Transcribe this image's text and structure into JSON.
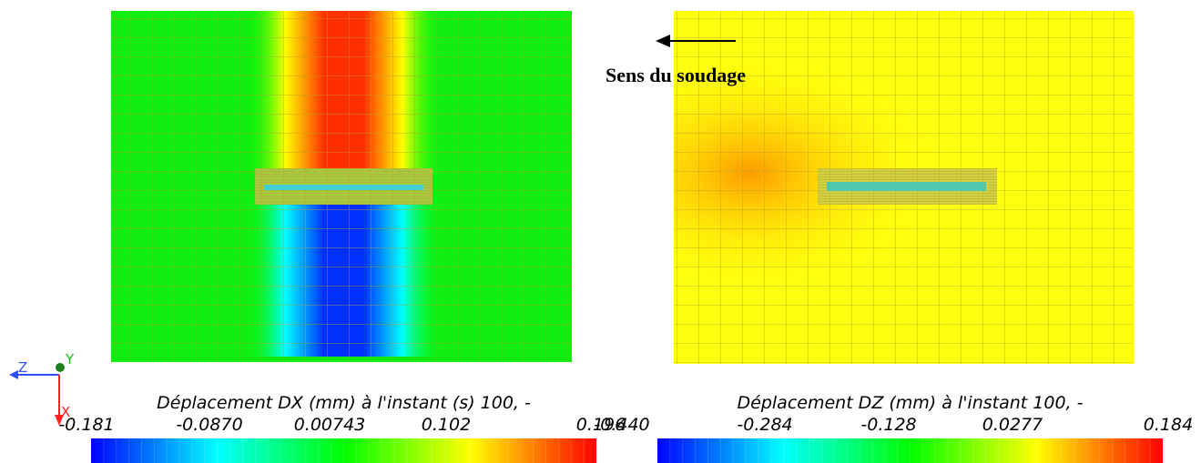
{
  "left": {
    "title": "Déplacement DX (mm) à l'instant (s) 100, -",
    "ticks": [
      "-0.181",
      "-0.0870",
      "0.00743",
      "0.102",
      "0.196"
    ]
  },
  "right": {
    "title": "Déplacement DZ (mm) à l'instant 100, -",
    "ticks": [
      "-0.440",
      "-0.284",
      "-0.128",
      "0.0277",
      "0.184"
    ]
  },
  "annotation": "Sens du soudage",
  "axes": {
    "z": "Z",
    "y": "Y",
    "x": "X"
  }
}
